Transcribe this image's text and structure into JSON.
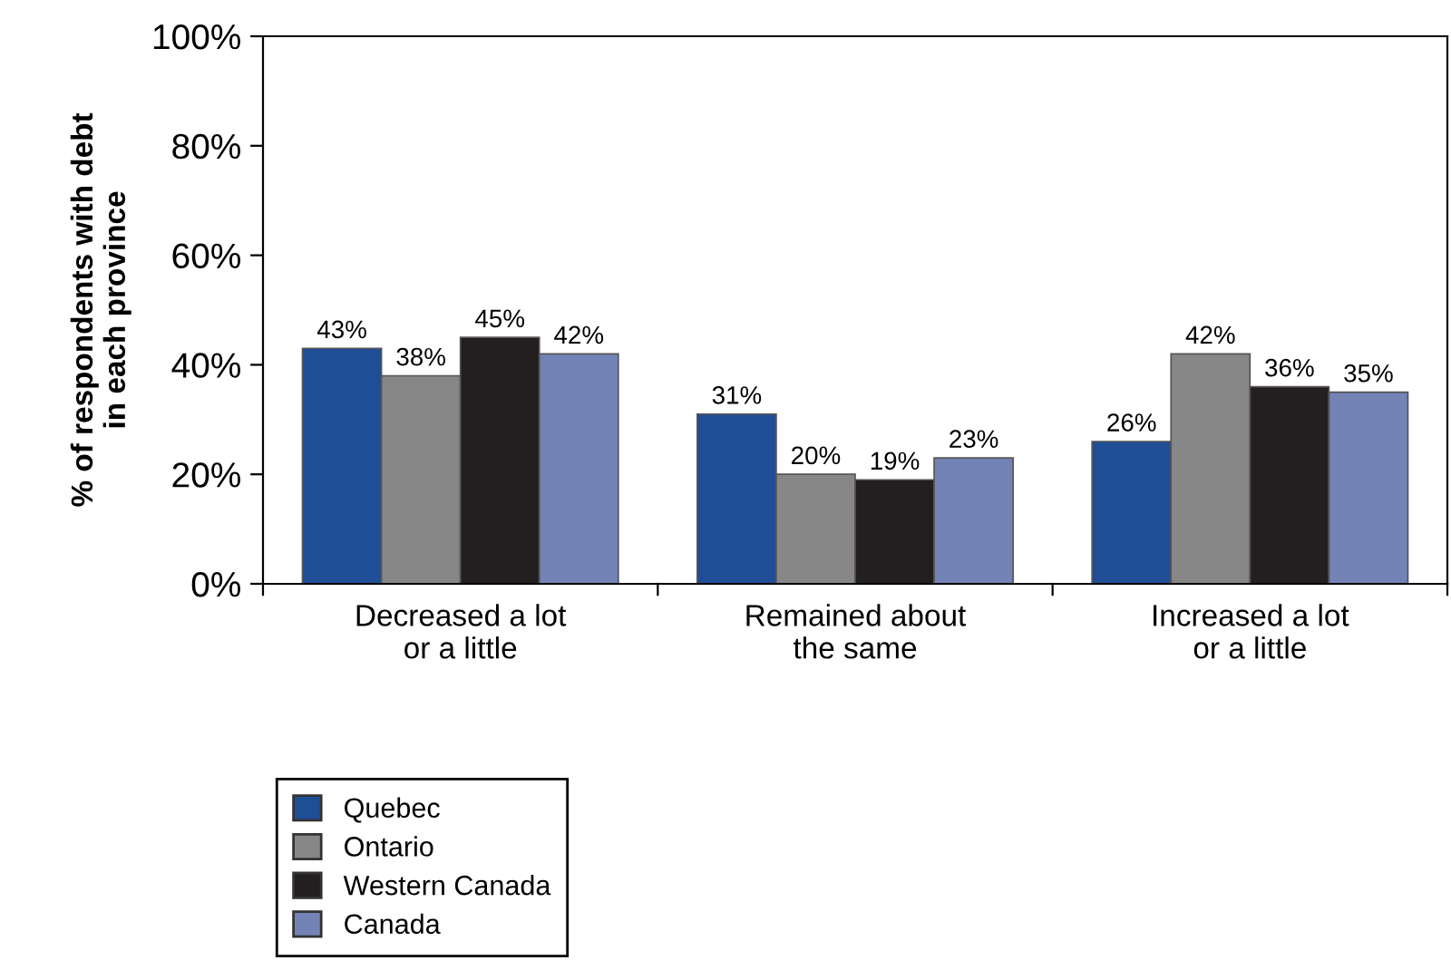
{
  "chart_data": {
    "type": "bar",
    "ylabel": "% of respondents with debt\nin each province",
    "categories": [
      "Decreased a lot\nor a little",
      "Remained about\nthe same",
      "Increased a lot\nor a little"
    ],
    "series": [
      {
        "name": "Quebec",
        "color": "#1f4e96",
        "values": [
          43,
          31,
          26
        ],
        "value_labels": [
          "43%",
          "31%",
          "26%"
        ]
      },
      {
        "name": "Ontario",
        "color": "#878787",
        "values": [
          38,
          20,
          42
        ],
        "value_labels": [
          "38%",
          "20%",
          "42%"
        ]
      },
      {
        "name": "Western Canada",
        "color": "#231f20",
        "values": [
          45,
          19,
          36
        ],
        "value_labels": [
          "45%",
          "19%",
          "36%"
        ]
      },
      {
        "name": "Canada",
        "color": "#7383b5",
        "values": [
          42,
          23,
          35
        ],
        "value_labels": [
          "42%",
          "23%",
          "35%"
        ]
      }
    ],
    "ylim": [
      0,
      100
    ],
    "yticks": [
      {
        "value": 0,
        "label": "0%"
      },
      {
        "value": 20,
        "label": "20%"
      },
      {
        "value": 40,
        "label": "40%"
      },
      {
        "value": 60,
        "label": "60%"
      },
      {
        "value": 80,
        "label": "80%"
      },
      {
        "value": 100,
        "label": "100%"
      }
    ],
    "grid": false,
    "legend": "bottom left"
  }
}
